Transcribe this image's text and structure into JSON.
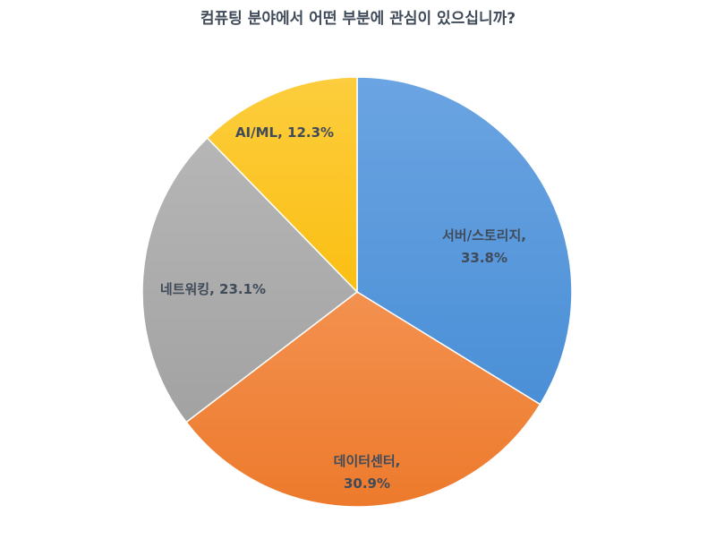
{
  "chart_data": {
    "type": "pie",
    "title": "컴퓨팅 분야에서 어떤 부분에 관심이 있으십니까?",
    "slices": [
      {
        "name": "서버/스토리지",
        "value": 33.8,
        "label_line1": "서버/스토리지,",
        "label_line2": "33.8%",
        "color": "#4a8fd6",
        "color_light": "#6ba4e2"
      },
      {
        "name": "데이터센터",
        "value": 30.9,
        "label_line1": "데이터센터,",
        "label_line2": "30.9%",
        "color": "#ed7a2c",
        "color_light": "#f3914f"
      },
      {
        "name": "네트워킹",
        "value": 23.1,
        "label_line1": "네트워킹, 23.1%",
        "label_line2": "",
        "color": "#a2a2a2",
        "color_light": "#b6b6b6"
      },
      {
        "name": "AI/ML",
        "value": 12.3,
        "label_line1": "AI/ML, 12.3%",
        "label_line2": "",
        "color": "#fbbf13",
        "color_light": "#fccd3d"
      }
    ],
    "start_angle_deg": 0,
    "direction": "clockwise",
    "legend": "none",
    "separator_color": "#ffffff"
  }
}
